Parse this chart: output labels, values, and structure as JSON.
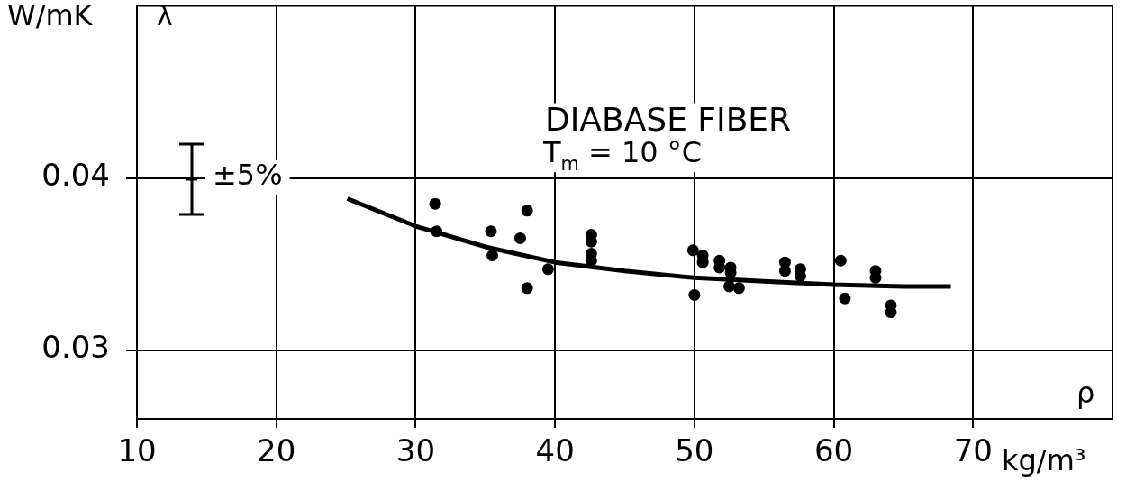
{
  "chart_data": {
    "type": "scatter",
    "title": "DIABASE FIBER",
    "subtitle": "T$_{m}$ = 10 °C",
    "xlabel": "ρ",
    "ylabel": "λ",
    "annotations": [
      "W/mK",
      "kg/m³",
      "±5%"
    ],
    "xlim": [
      10,
      80
    ],
    "xticks": [
      10,
      20,
      30,
      40,
      50,
      60,
      70
    ],
    "ylim": [
      0.026,
      0.05
    ],
    "yticks": [
      0.03,
      0.04
    ],
    "grid": true,
    "legend": false,
    "marker": "circle",
    "series": [
      {
        "color": "#000000",
        "x": [
          31.4,
          31.5,
          35.4,
          35.5,
          38.0,
          37.5,
          39.5,
          38.0,
          42.6,
          42.6,
          42.6,
          42.6,
          49.9,
          50.6,
          50.6,
          50.0,
          51.8,
          51.8,
          52.6,
          52.6,
          52.5,
          53.2,
          56.5,
          56.5,
          57.6,
          57.6,
          60.5,
          60.8,
          63.0,
          63.0,
          64.1,
          64.1
        ],
        "values": [
          0.0385,
          0.0369,
          0.0369,
          0.0355,
          0.0381,
          0.0365,
          0.0347,
          0.0336,
          0.0367,
          0.0363,
          0.0356,
          0.0352,
          0.0358,
          0.0355,
          0.0351,
          0.0332,
          0.0352,
          0.0348,
          0.0348,
          0.0345,
          0.0337,
          0.0336,
          0.0351,
          0.0346,
          0.0347,
          0.0343,
          0.0352,
          0.033,
          0.0346,
          0.0342,
          0.0326,
          0.0322
        ]
      },
      {
        "type": "line",
        "color": "#000000",
        "marker": "none",
        "x": [
          25.1,
          30,
          35,
          40,
          45,
          50,
          55,
          60,
          65,
          68.4
        ],
        "values": [
          0.0388,
          0.0372,
          0.036,
          0.0351,
          0.0346,
          0.0342,
          0.034,
          0.0338,
          0.0337,
          0.0337
        ]
      }
    ]
  }
}
